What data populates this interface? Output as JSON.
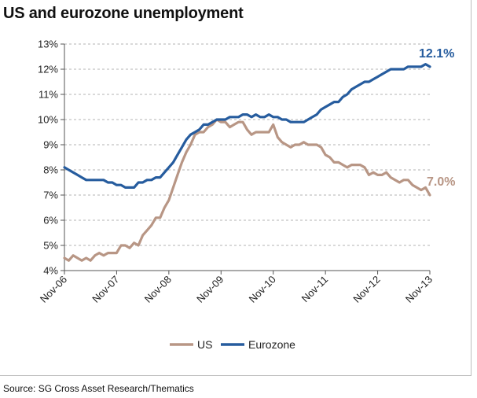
{
  "chart_data": {
    "type": "line",
    "title": "US and eurozone unemployment",
    "source": "Source: SG Cross Asset Research/Thematics",
    "xlabel": "",
    "ylabel": "",
    "ylim": [
      4,
      13
    ],
    "y_ticks": [
      "4%",
      "5%",
      "6%",
      "7%",
      "8%",
      "9%",
      "10%",
      "11%",
      "12%",
      "13%"
    ],
    "x_ticks": [
      "Nov-06",
      "Nov-07",
      "Nov-08",
      "Nov-09",
      "Nov-10",
      "Nov-11",
      "Nov-12",
      "Nov-13"
    ],
    "x_range_months": [
      0,
      84
    ],
    "grid": "horizontal dashed",
    "legend_position": "bottom",
    "colors": {
      "US": "#b89685",
      "Eurozone": "#265c9e"
    },
    "series": [
      {
        "name": "US",
        "end_label": "7.0%",
        "points": [
          [
            0,
            4.5
          ],
          [
            1,
            4.4
          ],
          [
            2,
            4.6
          ],
          [
            3,
            4.5
          ],
          [
            4,
            4.4
          ],
          [
            5,
            4.5
          ],
          [
            6,
            4.4
          ],
          [
            7,
            4.6
          ],
          [
            8,
            4.7
          ],
          [
            9,
            4.6
          ],
          [
            10,
            4.7
          ],
          [
            11,
            4.7
          ],
          [
            12,
            4.7
          ],
          [
            13,
            5.0
          ],
          [
            14,
            5.0
          ],
          [
            15,
            4.9
          ],
          [
            16,
            5.1
          ],
          [
            17,
            5.0
          ],
          [
            18,
            5.4
          ],
          [
            19,
            5.6
          ],
          [
            20,
            5.8
          ],
          [
            21,
            6.1
          ],
          [
            22,
            6.1
          ],
          [
            23,
            6.5
          ],
          [
            24,
            6.8
          ],
          [
            25,
            7.3
          ],
          [
            26,
            7.8
          ],
          [
            27,
            8.3
          ],
          [
            28,
            8.7
          ],
          [
            29,
            9.0
          ],
          [
            30,
            9.4
          ],
          [
            31,
            9.5
          ],
          [
            32,
            9.5
          ],
          [
            33,
            9.7
          ],
          [
            34,
            9.8
          ],
          [
            35,
            10.0
          ],
          [
            36,
            9.9
          ],
          [
            37,
            9.9
          ],
          [
            38,
            9.7
          ],
          [
            39,
            9.8
          ],
          [
            40,
            9.9
          ],
          [
            41,
            9.9
          ],
          [
            42,
            9.6
          ],
          [
            43,
            9.4
          ],
          [
            44,
            9.5
          ],
          [
            45,
            9.5
          ],
          [
            46,
            9.5
          ],
          [
            47,
            9.5
          ],
          [
            48,
            9.8
          ],
          [
            49,
            9.3
          ],
          [
            50,
            9.1
          ],
          [
            51,
            9.0
          ],
          [
            52,
            8.9
          ],
          [
            53,
            9.0
          ],
          [
            54,
            9.0
          ],
          [
            55,
            9.1
          ],
          [
            56,
            9.0
          ],
          [
            57,
            9.0
          ],
          [
            58,
            9.0
          ],
          [
            59,
            8.9
          ],
          [
            60,
            8.6
          ],
          [
            61,
            8.5
          ],
          [
            62,
            8.3
          ],
          [
            63,
            8.3
          ],
          [
            64,
            8.2
          ],
          [
            65,
            8.1
          ],
          [
            66,
            8.2
          ],
          [
            67,
            8.2
          ],
          [
            68,
            8.2
          ],
          [
            69,
            8.1
          ],
          [
            70,
            7.8
          ],
          [
            71,
            7.9
          ],
          [
            72,
            7.8
          ],
          [
            73,
            7.8
          ],
          [
            74,
            7.9
          ],
          [
            75,
            7.7
          ],
          [
            76,
            7.6
          ],
          [
            77,
            7.5
          ],
          [
            78,
            7.6
          ],
          [
            79,
            7.6
          ],
          [
            80,
            7.4
          ],
          [
            81,
            7.3
          ],
          [
            82,
            7.2
          ],
          [
            83,
            7.3
          ],
          [
            84,
            7.0
          ]
        ]
      },
      {
        "name": "Eurozone",
        "end_label": "12.1%",
        "points": [
          [
            0,
            8.1
          ],
          [
            1,
            8.0
          ],
          [
            2,
            7.9
          ],
          [
            3,
            7.8
          ],
          [
            4,
            7.7
          ],
          [
            5,
            7.6
          ],
          [
            6,
            7.6
          ],
          [
            7,
            7.6
          ],
          [
            8,
            7.6
          ],
          [
            9,
            7.6
          ],
          [
            10,
            7.5
          ],
          [
            11,
            7.5
          ],
          [
            12,
            7.4
          ],
          [
            13,
            7.4
          ],
          [
            14,
            7.3
          ],
          [
            15,
            7.3
          ],
          [
            16,
            7.3
          ],
          [
            17,
            7.5
          ],
          [
            18,
            7.5
          ],
          [
            19,
            7.6
          ],
          [
            20,
            7.6
          ],
          [
            21,
            7.7
          ],
          [
            22,
            7.7
          ],
          [
            23,
            7.9
          ],
          [
            24,
            8.1
          ],
          [
            25,
            8.3
          ],
          [
            26,
            8.6
          ],
          [
            27,
            8.9
          ],
          [
            28,
            9.2
          ],
          [
            29,
            9.4
          ],
          [
            30,
            9.5
          ],
          [
            31,
            9.6
          ],
          [
            32,
            9.8
          ],
          [
            33,
            9.8
          ],
          [
            34,
            9.9
          ],
          [
            35,
            10.0
          ],
          [
            36,
            10.0
          ],
          [
            37,
            10.0
          ],
          [
            38,
            10.1
          ],
          [
            39,
            10.1
          ],
          [
            40,
            10.1
          ],
          [
            41,
            10.2
          ],
          [
            42,
            10.2
          ],
          [
            43,
            10.1
          ],
          [
            44,
            10.2
          ],
          [
            45,
            10.1
          ],
          [
            46,
            10.1
          ],
          [
            47,
            10.2
          ],
          [
            48,
            10.1
          ],
          [
            49,
            10.1
          ],
          [
            50,
            10.0
          ],
          [
            51,
            10.0
          ],
          [
            52,
            9.9
          ],
          [
            53,
            9.9
          ],
          [
            54,
            9.9
          ],
          [
            55,
            9.9
          ],
          [
            56,
            10.0
          ],
          [
            57,
            10.1
          ],
          [
            58,
            10.2
          ],
          [
            59,
            10.4
          ],
          [
            60,
            10.5
          ],
          [
            61,
            10.6
          ],
          [
            62,
            10.7
          ],
          [
            63,
            10.7
          ],
          [
            64,
            10.9
          ],
          [
            65,
            11.0
          ],
          [
            66,
            11.2
          ],
          [
            67,
            11.3
          ],
          [
            68,
            11.4
          ],
          [
            69,
            11.5
          ],
          [
            70,
            11.5
          ],
          [
            71,
            11.6
          ],
          [
            72,
            11.7
          ],
          [
            73,
            11.8
          ],
          [
            74,
            11.9
          ],
          [
            75,
            12.0
          ],
          [
            76,
            12.0
          ],
          [
            77,
            12.0
          ],
          [
            78,
            12.0
          ],
          [
            79,
            12.1
          ],
          [
            80,
            12.1
          ],
          [
            81,
            12.1
          ],
          [
            82,
            12.1
          ],
          [
            83,
            12.2
          ],
          [
            84,
            12.1
          ]
        ]
      }
    ]
  }
}
